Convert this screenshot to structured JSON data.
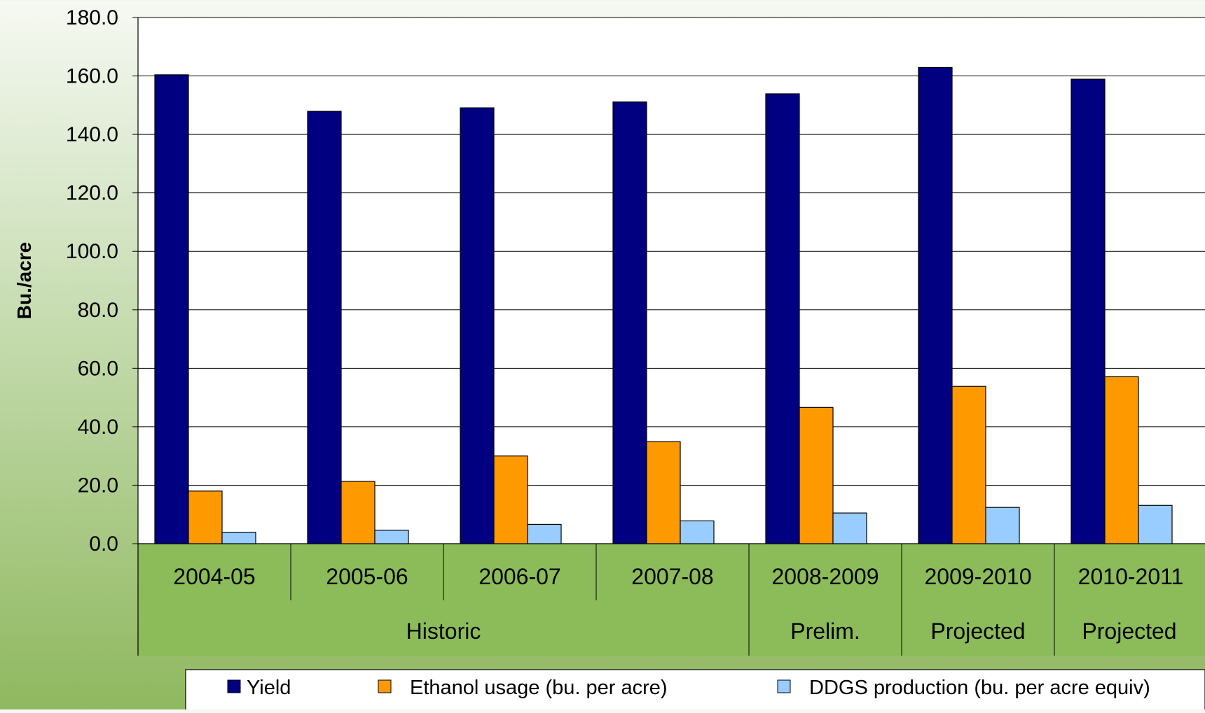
{
  "chart_data": {
    "type": "bar",
    "title": "",
    "ylabel": "Bu./acre",
    "xlabel": "",
    "ylim": [
      0,
      180
    ],
    "y_ticks": [
      "0.0",
      "20.0",
      "40.0",
      "60.0",
      "80.0",
      "100.0",
      "120.0",
      "140.0",
      "160.0",
      "180.0"
    ],
    "categories": [
      "2004-05",
      "2005-06",
      "2006-07",
      "2007-08",
      "2008-2009",
      "2009-2010",
      "2010-2011"
    ],
    "category_groups": [
      {
        "label": "Historic",
        "span": 4
      },
      {
        "label": "Prelim.",
        "span": 1
      },
      {
        "label": "Projected",
        "span": 1
      },
      {
        "label": "Projected",
        "span": 1
      }
    ],
    "series": [
      {
        "name": "Yield",
        "color": "#000080",
        "values": [
          160.4,
          147.9,
          149.1,
          151.1,
          153.9,
          162.9,
          158.9
        ]
      },
      {
        "name": "Ethanol usage (bu. per acre)",
        "color": "#ff9900",
        "values": [
          18.0,
          21.3,
          30.0,
          34.9,
          46.6,
          53.8,
          57.1
        ]
      },
      {
        "name": "DDGS production (bu. per acre equiv)",
        "color": "#99ccff",
        "values": [
          3.9,
          4.6,
          6.6,
          7.8,
          10.5,
          12.4,
          13.1
        ]
      }
    ],
    "grid": true,
    "legend": "bottom",
    "plot_background": "#ffffff",
    "axis_band_color": "#8cbb59"
  }
}
